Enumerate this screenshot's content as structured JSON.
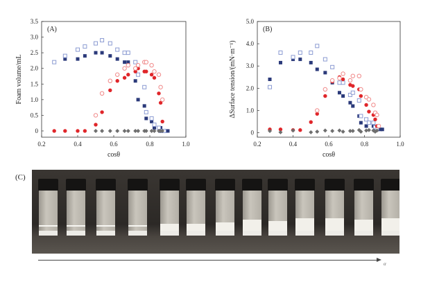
{
  "colors": {
    "dark_blue": "#2b3a7a",
    "light_blue": "#8b9bd2",
    "red": "#e0262a",
    "light_red": "#f08888",
    "gray": "#6e6e6e"
  },
  "chart_data": [
    {
      "type": "scatter",
      "panel": "(A)",
      "xlabel": "cosθ",
      "ylabel": "Foam volume/mL",
      "xlim": [
        0.2,
        1.0
      ],
      "ylim": [
        -0.2,
        3.5
      ],
      "xticks": [
        "0.2",
        "0.4",
        "0.6",
        "0.8",
        "1.0"
      ],
      "yticks": [
        "0",
        "0.5",
        "1.0",
        "1.5",
        "2.0",
        "2.5",
        "3.0",
        "3.5"
      ],
      "series": [
        {
          "marker": "filled-square",
          "color": "#2b3a7a",
          "points": [
            [
              0.27,
              2.2
            ],
            [
              0.33,
              2.3
            ],
            [
              0.4,
              2.3
            ],
            [
              0.44,
              2.4
            ],
            [
              0.5,
              2.5
            ],
            [
              0.535,
              2.5
            ],
            [
              0.58,
              2.4
            ],
            [
              0.62,
              2.3
            ],
            [
              0.66,
              2.2
            ],
            [
              0.68,
              2.2
            ],
            [
              0.72,
              1.6
            ],
            [
              0.735,
              1.0
            ],
            [
              0.77,
              0.8
            ],
            [
              0.78,
              0.4
            ],
            [
              0.81,
              0.3
            ],
            [
              0.825,
              0.1
            ],
            [
              0.85,
              0.1
            ],
            [
              0.86,
              0.1
            ],
            [
              0.87,
              0
            ],
            [
              0.89,
              0
            ],
            [
              0.9,
              0
            ]
          ]
        },
        {
          "marker": "open-square",
          "color": "#8b9bd2",
          "points": [
            [
              0.27,
              2.2
            ],
            [
              0.33,
              2.4
            ],
            [
              0.4,
              2.6
            ],
            [
              0.44,
              2.7
            ],
            [
              0.5,
              2.8
            ],
            [
              0.535,
              2.9
            ],
            [
              0.58,
              2.8
            ],
            [
              0.62,
              2.6
            ],
            [
              0.66,
              2.5
            ],
            [
              0.68,
              2.5
            ],
            [
              0.72,
              2.2
            ],
            [
              0.735,
              1.8
            ],
            [
              0.77,
              1.4
            ],
            [
              0.78,
              0.6
            ],
            [
              0.81,
              0.4
            ],
            [
              0.825,
              0.2
            ],
            [
              0.85,
              0.1
            ],
            [
              0.86,
              0
            ],
            [
              0.88,
              0
            ]
          ]
        },
        {
          "marker": "filled-circle",
          "color": "#e0262a",
          "points": [
            [
              0.27,
              0
            ],
            [
              0.33,
              0
            ],
            [
              0.4,
              0
            ],
            [
              0.44,
              0
            ],
            [
              0.5,
              0.2
            ],
            [
              0.535,
              0.6
            ],
            [
              0.58,
              1.3
            ],
            [
              0.62,
              1.6
            ],
            [
              0.66,
              1.7
            ],
            [
              0.68,
              1.8
            ],
            [
              0.72,
              1.9
            ],
            [
              0.735,
              2.0
            ],
            [
              0.77,
              1.9
            ],
            [
              0.78,
              1.9
            ],
            [
              0.81,
              1.8
            ],
            [
              0.825,
              1.7
            ],
            [
              0.85,
              1.2
            ],
            [
              0.86,
              0.9
            ],
            [
              0.87,
              0.3
            ]
          ]
        },
        {
          "marker": "open-circle",
          "color": "#f08888",
          "points": [
            [
              0.5,
              0.5
            ],
            [
              0.535,
              1.2
            ],
            [
              0.58,
              1.6
            ],
            [
              0.62,
              1.8
            ],
            [
              0.66,
              2.0
            ],
            [
              0.68,
              2.1
            ],
            [
              0.72,
              2.0
            ],
            [
              0.735,
              2.1
            ],
            [
              0.77,
              2.2
            ],
            [
              0.78,
              2.2
            ],
            [
              0.81,
              2.1
            ],
            [
              0.825,
              1.9
            ],
            [
              0.85,
              1.8
            ],
            [
              0.86,
              1.4
            ],
            [
              0.87,
              1.0
            ]
          ]
        },
        {
          "marker": "diamond",
          "color": "#6e6e6e",
          "points": [
            [
              0.5,
              0
            ],
            [
              0.535,
              0
            ],
            [
              0.58,
              0
            ],
            [
              0.62,
              0
            ],
            [
              0.66,
              0
            ],
            [
              0.68,
              0
            ],
            [
              0.72,
              0
            ],
            [
              0.735,
              0
            ],
            [
              0.77,
              0
            ],
            [
              0.78,
              0
            ],
            [
              0.81,
              0
            ],
            [
              0.825,
              0
            ],
            [
              0.85,
              0
            ],
            [
              0.86,
              0
            ],
            [
              0.87,
              0
            ]
          ]
        }
      ]
    },
    {
      "type": "scatter",
      "panel": "(B)",
      "xlabel": "cosθ",
      "ylabel": "ΔSurface tension/(mN·m⁻¹)",
      "xlim": [
        0.2,
        1.0
      ],
      "ylim": [
        -0.2,
        5.0
      ],
      "xticks": [
        "0.2",
        "0.4",
        "0.6",
        "0.8",
        "1.0"
      ],
      "yticks": [
        "0",
        "1.0",
        "2.0",
        "3.0",
        "4.0",
        "5.0"
      ],
      "series": [
        {
          "marker": "filled-square",
          "color": "#2b3a7a",
          "points": [
            [
              0.27,
              2.4
            ],
            [
              0.33,
              3.15
            ],
            [
              0.4,
              3.3
            ],
            [
              0.44,
              3.3
            ],
            [
              0.5,
              3.15
            ],
            [
              0.535,
              2.85
            ],
            [
              0.58,
              2.7
            ],
            [
              0.62,
              2.25
            ],
            [
              0.66,
              1.8
            ],
            [
              0.68,
              1.65
            ],
            [
              0.72,
              1.35
            ],
            [
              0.735,
              1.2
            ],
            [
              0.77,
              0.75
            ],
            [
              0.78,
              0.45
            ],
            [
              0.81,
              0.3
            ],
            [
              0.825,
              0.45
            ],
            [
              0.85,
              0.3
            ],
            [
              0.86,
              0.15
            ],
            [
              0.87,
              0.15
            ],
            [
              0.89,
              0.15
            ],
            [
              0.9,
              0.15
            ]
          ]
        },
        {
          "marker": "open-square",
          "color": "#8b9bd2",
          "points": [
            [
              0.27,
              2.05
            ],
            [
              0.33,
              3.6
            ],
            [
              0.4,
              3.4
            ],
            [
              0.44,
              3.6
            ],
            [
              0.5,
              3.6
            ],
            [
              0.535,
              3.9
            ],
            [
              0.58,
              3.3
            ],
            [
              0.62,
              2.95
            ],
            [
              0.66,
              2.25
            ],
            [
              0.68,
              2.25
            ],
            [
              0.72,
              1.7
            ],
            [
              0.735,
              1.8
            ],
            [
              0.77,
              1.45
            ],
            [
              0.78,
              0.75
            ],
            [
              0.81,
              0.6
            ],
            [
              0.825,
              0.45
            ],
            [
              0.85,
              0.45
            ],
            [
              0.86,
              0.25
            ],
            [
              0.87,
              0.15
            ]
          ]
        },
        {
          "marker": "filled-circle",
          "color": "#e0262a",
          "points": [
            [
              0.27,
              0.15
            ],
            [
              0.33,
              0.15
            ],
            [
              0.4,
              0.12
            ],
            [
              0.44,
              0.12
            ],
            [
              0.5,
              0.48
            ],
            [
              0.535,
              0.85
            ],
            [
              0.58,
              1.65
            ],
            [
              0.62,
              2.3
            ],
            [
              0.66,
              2.5
            ],
            [
              0.68,
              2.4
            ],
            [
              0.72,
              2.15
            ],
            [
              0.735,
              2.1
            ],
            [
              0.77,
              1.95
            ],
            [
              0.78,
              1.65
            ],
            [
              0.81,
              1.25
            ],
            [
              0.825,
              0.95
            ],
            [
              0.85,
              0.8
            ],
            [
              0.86,
              0.6
            ],
            [
              0.87,
              0.3
            ]
          ]
        },
        {
          "marker": "open-circle",
          "color": "#f08888",
          "points": [
            [
              0.535,
              1.0
            ],
            [
              0.58,
              1.95
            ],
            [
              0.62,
              2.35
            ],
            [
              0.66,
              2.45
            ],
            [
              0.68,
              2.65
            ],
            [
              0.72,
              2.35
            ],
            [
              0.735,
              2.55
            ],
            [
              0.77,
              2.55
            ],
            [
              0.78,
              1.95
            ],
            [
              0.81,
              1.6
            ],
            [
              0.825,
              1.5
            ],
            [
              0.85,
              1.25
            ],
            [
              0.86,
              0.9
            ],
            [
              0.87,
              0.8
            ],
            [
              0.88,
              0.3
            ]
          ]
        },
        {
          "marker": "diamond",
          "color": "#6e6e6e",
          "points": [
            [
              0.27,
              0.08
            ],
            [
              0.33,
              0.02
            ],
            [
              0.4,
              0.1
            ],
            [
              0.5,
              0.02
            ],
            [
              0.535,
              0.05
            ],
            [
              0.58,
              0.1
            ],
            [
              0.62,
              0.08
            ],
            [
              0.66,
              0.1
            ],
            [
              0.68,
              0.05
            ],
            [
              0.72,
              0.08
            ],
            [
              0.735,
              0.08
            ],
            [
              0.77,
              0.12
            ],
            [
              0.78,
              0.05
            ],
            [
              0.81,
              0.1
            ],
            [
              0.825,
              0.12
            ],
            [
              0.85,
              0.1
            ],
            [
              0.86,
              0.05
            ],
            [
              0.87,
              0.1
            ]
          ]
        }
      ]
    }
  ],
  "photo": {
    "panel": "(C)",
    "vial_count": 13,
    "arrow_label": "α"
  }
}
